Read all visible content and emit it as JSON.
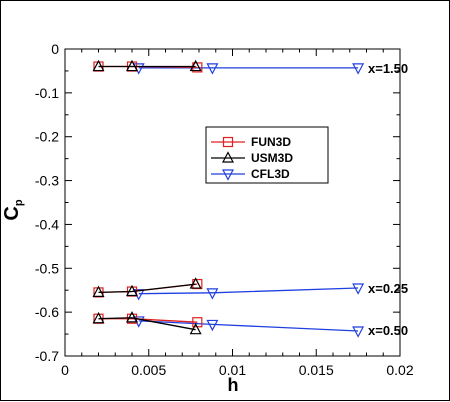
{
  "chart_data": {
    "type": "line",
    "xlabel": "h",
    "ylabel": "C",
    "ylabel_sub": "p",
    "xlim": [
      0,
      0.02
    ],
    "ylim": [
      -0.7,
      0
    ],
    "x_ticks": [
      "0",
      "0.005",
      "0.01",
      "0.015",
      "0.02"
    ],
    "y_ticks": [
      "0",
      "-0.1",
      "-0.2",
      "-0.3",
      "-0.4",
      "-0.5",
      "-0.6",
      "-0.7"
    ],
    "legend_position": "center-right",
    "colors": {
      "FUN3D": "#e02020",
      "USM3D": "#000000",
      "CFL3D": "#1f3fe0"
    },
    "annotations": [
      "x=1.50",
      "x=0.25",
      "x=0.50"
    ],
    "series": [
      {
        "name": "FUN3D",
        "marker": "square",
        "group": "x=1.50",
        "points": [
          [
            0.002,
            -0.04
          ],
          [
            0.004,
            -0.04
          ],
          [
            0.0079,
            -0.042
          ]
        ]
      },
      {
        "name": "USM3D",
        "marker": "triangle-up",
        "group": "x=1.50",
        "points": [
          [
            0.002,
            -0.04
          ],
          [
            0.004,
            -0.04
          ],
          [
            0.0078,
            -0.04
          ]
        ]
      },
      {
        "name": "CFL3D",
        "marker": "triangle-down",
        "group": "x=1.50",
        "points": [
          [
            0.0044,
            -0.043
          ],
          [
            0.0088,
            -0.043
          ],
          [
            0.0175,
            -0.043
          ]
        ]
      },
      {
        "name": "FUN3D",
        "marker": "square",
        "group": "x=0.25",
        "points": [
          [
            0.002,
            -0.555
          ],
          [
            0.004,
            -0.553
          ],
          [
            0.0079,
            -0.536
          ]
        ]
      },
      {
        "name": "USM3D",
        "marker": "triangle-up",
        "group": "x=0.25",
        "points": [
          [
            0.002,
            -0.555
          ],
          [
            0.004,
            -0.553
          ],
          [
            0.0078,
            -0.536
          ]
        ]
      },
      {
        "name": "CFL3D",
        "marker": "triangle-down",
        "group": "x=0.25",
        "points": [
          [
            0.0044,
            -0.558
          ],
          [
            0.0088,
            -0.556
          ],
          [
            0.0175,
            -0.545
          ]
        ]
      },
      {
        "name": "FUN3D",
        "marker": "square",
        "group": "x=0.50",
        "points": [
          [
            0.002,
            -0.615
          ],
          [
            0.004,
            -0.615
          ],
          [
            0.0079,
            -0.623
          ]
        ]
      },
      {
        "name": "USM3D",
        "marker": "triangle-up",
        "group": "x=0.50",
        "points": [
          [
            0.002,
            -0.615
          ],
          [
            0.004,
            -0.613
          ],
          [
            0.0078,
            -0.64
          ]
        ]
      },
      {
        "name": "CFL3D",
        "marker": "triangle-down",
        "group": "x=0.50",
        "points": [
          [
            0.0044,
            -0.62
          ],
          [
            0.0088,
            -0.628
          ],
          [
            0.0175,
            -0.643
          ]
        ]
      }
    ]
  }
}
